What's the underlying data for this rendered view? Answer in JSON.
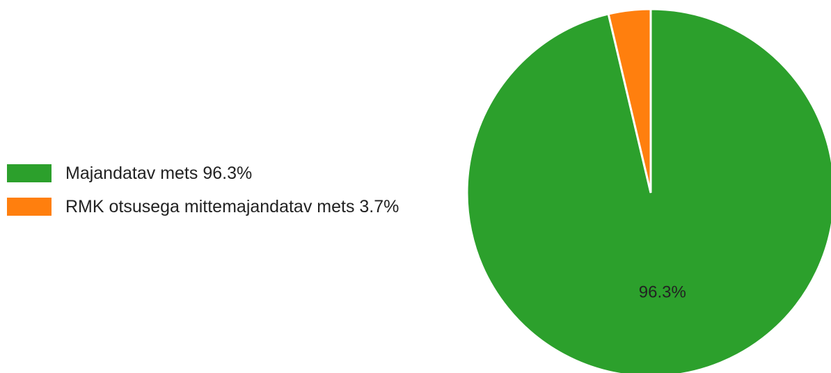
{
  "chart_data": {
    "type": "pie",
    "slices": [
      {
        "label": "Majandatav mets",
        "value": 96.3,
        "legend_text": "Majandatav mets 96.3%",
        "slice_label": "96.3%",
        "color": "#2ca02c"
      },
      {
        "label": "RMK otsusega mittemajandatav mets",
        "value": 3.7,
        "legend_text": "RMK otsusega mittemajandatav mets 3.7%",
        "slice_label": "",
        "color": "#ff7f0e"
      }
    ],
    "legend_placement": "left",
    "start_angle_deg": 0,
    "direction": "clockwise"
  }
}
